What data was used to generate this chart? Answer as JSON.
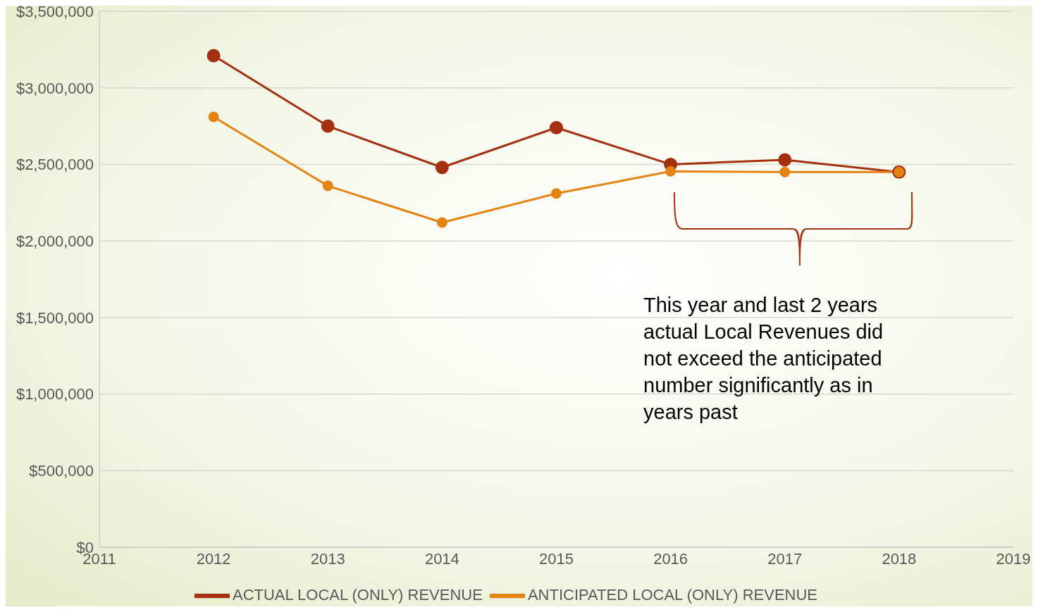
{
  "chart_data": {
    "type": "line",
    "x": [
      2012,
      2013,
      2014,
      2015,
      2016,
      2017,
      2018
    ],
    "series": [
      {
        "name": "ACTUAL LOCAL (ONLY) REVENUE",
        "color": "#a5300f",
        "values": [
          3210000,
          2750000,
          2480000,
          2740000,
          2500000,
          2530000,
          2450000
        ]
      },
      {
        "name": "ANTICIPATED LOCAL (ONLY) REVENUE",
        "color": "#e48312",
        "values": [
          2810000,
          2360000,
          2120000,
          2310000,
          2455000,
          2450000,
          2450000
        ]
      }
    ],
    "xlim": [
      2011,
      2019
    ],
    "xticks": [
      2011,
      2012,
      2013,
      2014,
      2015,
      2016,
      2017,
      2018,
      2019
    ],
    "ylim": [
      0,
      3500000
    ],
    "yticks": [
      {
        "value": 0,
        "label": "$0"
      },
      {
        "value": 500000,
        "label": "$500,000"
      },
      {
        "value": 1000000,
        "label": "$1,000,000"
      },
      {
        "value": 1500000,
        "label": "$1,500,000"
      },
      {
        "value": 2000000,
        "label": "$2,000,000"
      },
      {
        "value": 2500000,
        "label": "$2,500,000"
      },
      {
        "value": 3000000,
        "label": "$3,000,000"
      },
      {
        "value": 3500000,
        "label": "$3,500,000"
      }
    ],
    "grid": "y",
    "legend": "bottom",
    "marker": "circle",
    "line_style": "solid",
    "annotations": [
      "This year and last 2 years actual Local Revenues did not exceed the anticipated number significantly as in years past"
    ]
  }
}
